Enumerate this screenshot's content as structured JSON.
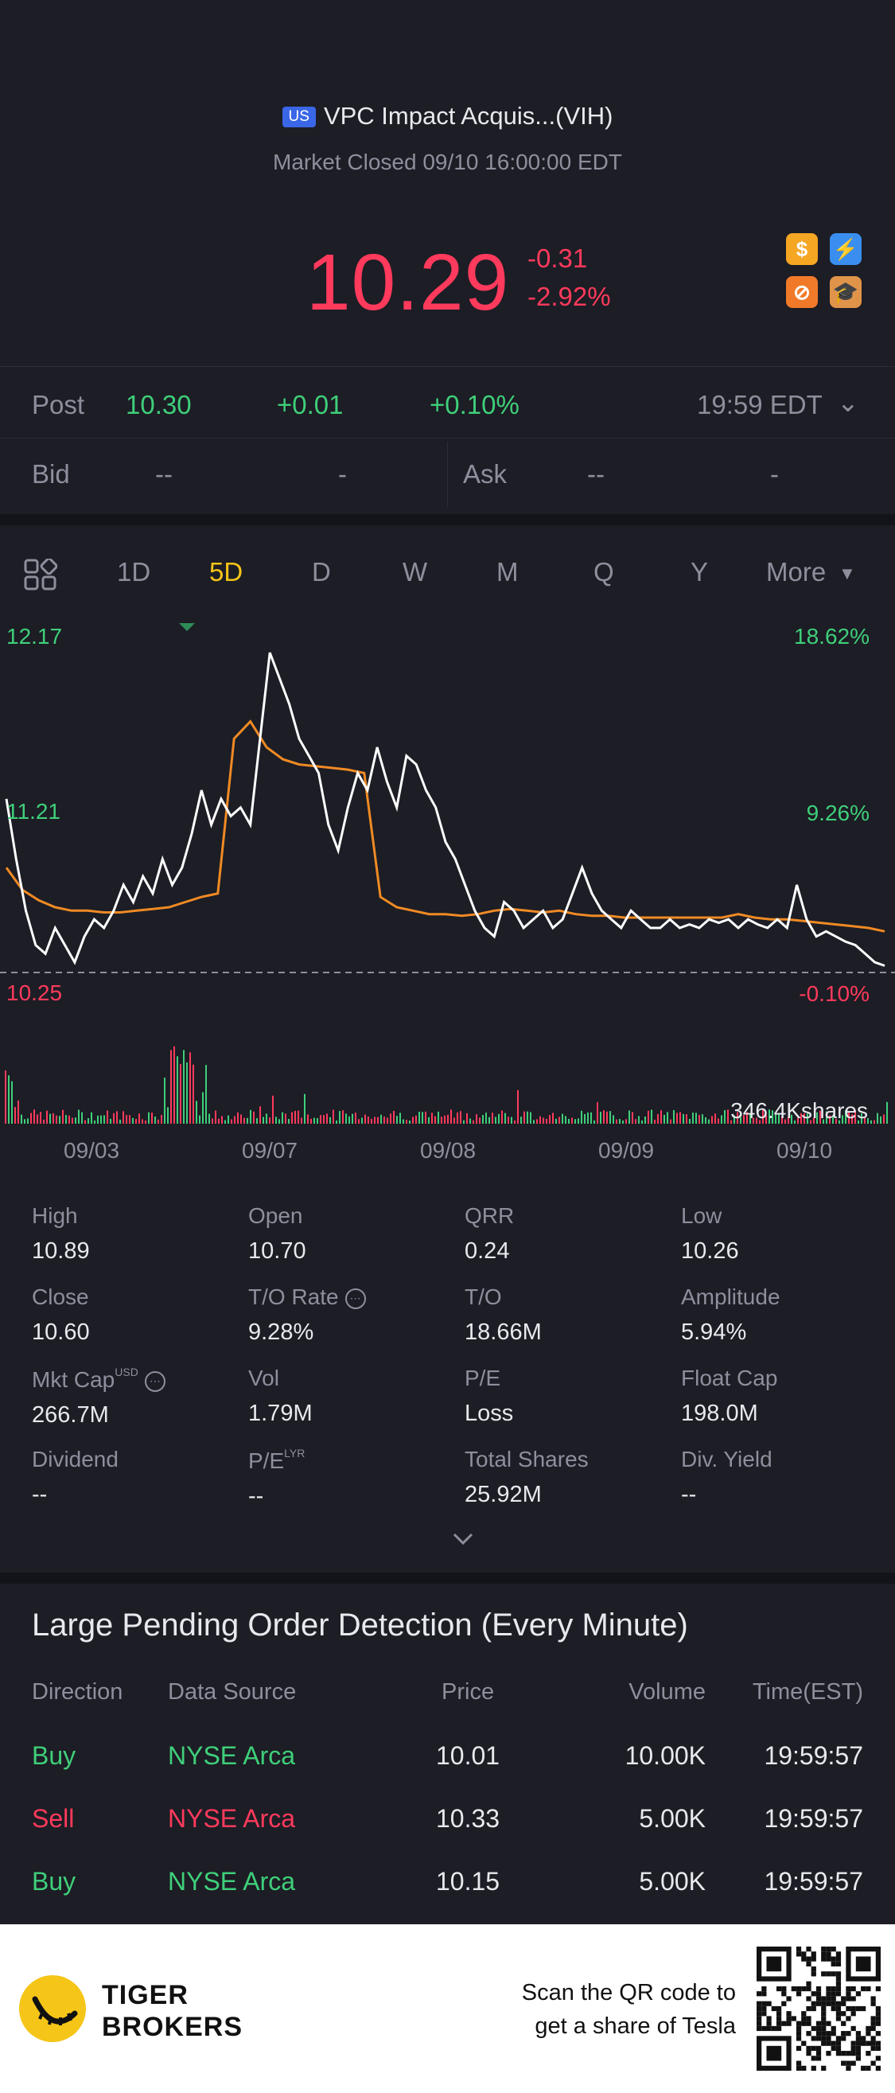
{
  "header": {
    "market_badge": "US",
    "title": "VPC Impact Acquis...(VIH)",
    "status": "Market Closed 09/10 16:00:00 EDT"
  },
  "quote": {
    "price": "10.29",
    "change": "-0.31",
    "change_pct": "-2.92%"
  },
  "icons": [
    "dollar-icon",
    "lightning-icon",
    "no-sign-icon",
    "education-icon"
  ],
  "post": {
    "label": "Post",
    "price": "10.30",
    "change": "+0.01",
    "change_pct": "+0.10%",
    "time": "19:59 EDT"
  },
  "bid_ask": {
    "bid_label": "Bid",
    "bid_price": "--",
    "bid_size": "-",
    "ask_label": "Ask",
    "ask_price": "--",
    "ask_size": "-"
  },
  "tabs": [
    "1D",
    "5D",
    "D",
    "W",
    "M",
    "Q",
    "Y",
    "More"
  ],
  "active_tab": "5D",
  "chart_data": {
    "type": "line",
    "y_labels": {
      "top": "12.17",
      "mid": "11.21",
      "bottom": "10.25"
    },
    "pct_labels": {
      "top": "18.62%",
      "mid": "9.26%",
      "bottom": "-0.10%"
    },
    "volume_label": "346.4Kshares",
    "x_labels": [
      "09/03",
      "09/07",
      "09/08",
      "09/09",
      "09/10"
    ],
    "ylim": [
      10.25,
      12.17
    ],
    "series": [
      {
        "values": [
          11.25,
          10.9,
          10.6,
          10.4,
          10.35,
          10.5,
          10.4,
          10.3,
          10.45,
          10.55,
          10.5,
          10.6,
          10.75,
          10.65,
          10.8,
          10.7,
          10.9,
          10.75,
          10.85,
          11.05,
          11.3,
          11.1,
          11.25,
          11.15,
          11.2,
          11.1,
          11.6,
          12.1,
          11.95,
          11.8,
          11.6,
          11.5,
          11.4,
          11.1,
          10.95,
          11.2,
          11.4,
          11.3,
          11.55,
          11.35,
          11.2,
          11.5,
          11.45,
          11.3,
          11.2,
          11.0,
          10.9,
          10.75,
          10.6,
          10.5,
          10.45,
          10.65,
          10.6,
          10.5,
          10.55,
          10.6,
          10.5,
          10.55,
          10.7,
          10.85,
          10.7,
          10.6,
          10.55,
          10.5,
          10.6,
          10.55,
          10.5,
          10.5,
          10.55,
          10.5,
          10.52,
          10.5,
          10.55,
          10.53,
          10.55,
          10.5,
          10.55,
          10.52,
          10.5,
          10.55,
          10.5,
          10.75,
          10.55,
          10.45,
          10.48,
          10.45,
          10.42,
          10.4,
          10.35,
          10.3,
          10.28
        ]
      },
      {
        "values": [
          10.85,
          10.72,
          10.66,
          10.62,
          10.6,
          10.6,
          10.59,
          10.59,
          10.6,
          10.61,
          10.62,
          10.65,
          10.68,
          10.7,
          11.6,
          11.7,
          11.55,
          11.48,
          11.45,
          11.44,
          11.43,
          11.42,
          11.4,
          10.68,
          10.62,
          10.6,
          10.58,
          10.58,
          10.57,
          10.58,
          10.6,
          10.61,
          10.6,
          10.59,
          10.6,
          10.58,
          10.57,
          10.57,
          10.56,
          10.56,
          10.56,
          10.56,
          10.56,
          10.56,
          10.56,
          10.58,
          10.56,
          10.55,
          10.55,
          10.54,
          10.53,
          10.52,
          10.51,
          10.5,
          10.48
        ]
      }
    ],
    "colors": {
      "price": "#ffffff",
      "average": "#f08a24",
      "up": "#3fcf7a",
      "down": "#ff3a5c"
    }
  },
  "stats": {
    "high": {
      "label": "High",
      "value": "10.89"
    },
    "open": {
      "label": "Open",
      "value": "10.70"
    },
    "qrr": {
      "label": "QRR",
      "value": "0.24"
    },
    "low": {
      "label": "Low",
      "value": "10.26"
    },
    "close": {
      "label": "Close",
      "value": "10.60"
    },
    "to_rate": {
      "label": "T/O Rate",
      "value": "9.28%"
    },
    "to": {
      "label": "T/O",
      "value": "18.66M"
    },
    "amplitude": {
      "label": "Amplitude",
      "value": "5.94%"
    },
    "mkt_cap": {
      "label": "Mkt Cap",
      "sup": "USD",
      "value": "266.7M"
    },
    "vol": {
      "label": "Vol",
      "value": "1.79M"
    },
    "pe": {
      "label": "P/E",
      "value": "Loss"
    },
    "float_cap": {
      "label": "Float Cap",
      "value": "198.0M"
    },
    "dividend": {
      "label": "Dividend",
      "value": "--"
    },
    "pe_lyr": {
      "label": "P/E",
      "sup": "LYR",
      "value": "--"
    },
    "total_shares": {
      "label": "Total Shares",
      "value": "25.92M"
    },
    "div_yield": {
      "label": "Div. Yield",
      "value": "--"
    }
  },
  "orders": {
    "title": "Large Pending Order Detection (Every Minute)",
    "columns": [
      "Direction",
      "Data Source",
      "Price",
      "Volume",
      "Time(EST)"
    ],
    "rows": [
      {
        "direction": "Buy",
        "source": "NYSE Arca",
        "price": "10.01",
        "volume": "10.00K",
        "time": "19:59:57"
      },
      {
        "direction": "Sell",
        "source": "NYSE Arca",
        "price": "10.33",
        "volume": "5.00K",
        "time": "19:59:57"
      },
      {
        "direction": "Buy",
        "source": "NYSE Arca",
        "price": "10.15",
        "volume": "5.00K",
        "time": "19:59:57"
      }
    ]
  },
  "footer": {
    "brand_line1": "TIGER",
    "brand_line2": "BROKERS",
    "scan_line1": "Scan the QR code to",
    "scan_line2": "get a share of Tesla"
  }
}
